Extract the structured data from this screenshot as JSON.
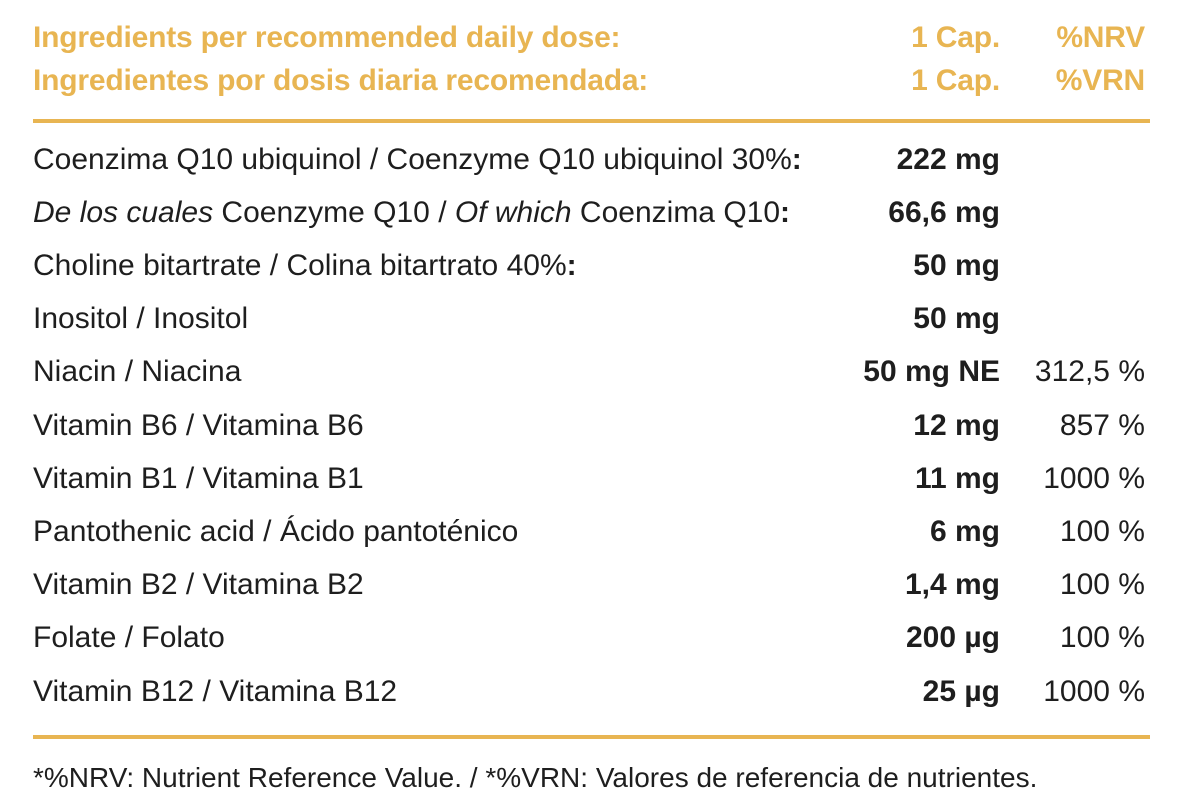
{
  "header": {
    "line1": {
      "label": "Ingredients per recommended daily dose:",
      "dose": "1 Cap.",
      "ref": "%NRV"
    },
    "line2": {
      "label": "Ingredientes por dosis diaria recomendada:",
      "dose": "1 Cap.",
      "ref": "%VRN"
    }
  },
  "rows": [
    {
      "name": "Coenzima Q10 ubiquinol / Coenzyme Q10 ubiquinol 30%",
      "colon": ":",
      "amount": "222 mg",
      "pct": ""
    },
    {
      "name_italic_1": "De los cuales",
      "name_part_2": " Coenzyme Q10 / ",
      "name_italic_3": "Of which",
      "name_part_4": " Coenzima Q10",
      "colon": ":",
      "amount": "66,6 mg",
      "pct": ""
    },
    {
      "name": "Choline bitartrate / Colina bitartrato 40%",
      "colon": ":",
      "amount": "50 mg",
      "pct": ""
    },
    {
      "name": "Inositol / Inositol",
      "amount": "50 mg",
      "pct": ""
    },
    {
      "name": "Niacin / Niacina",
      "amount": "50 mg NE",
      "pct": "312,5 %"
    },
    {
      "name": "Vitamin B6 / Vitamina B6",
      "amount": "12 mg",
      "pct": "857 %"
    },
    {
      "name": "Vitamin B1 / Vitamina B1",
      "amount": "11 mg",
      "pct": "1000 %"
    },
    {
      "name": "Pantothenic acid / Ácido pantoténico",
      "amount": "6 mg",
      "pct": "100 %"
    },
    {
      "name": "Vitamin B2 / Vitamina B2",
      "amount": "1,4 mg",
      "pct": "100 %"
    },
    {
      "name": "Folate / Folato",
      "amount": "200 µg",
      "pct": "100 %"
    },
    {
      "name": "Vitamin B12 / Vitamina B12",
      "amount": "25 µg",
      "pct": "1000 %"
    }
  ],
  "footnote": "*%NRV: Nutrient Reference Value. / *%VRN: Valores de referencia de nutrientes.",
  "colors": {
    "accent": "#e8b552",
    "text": "#1e1e1e"
  }
}
